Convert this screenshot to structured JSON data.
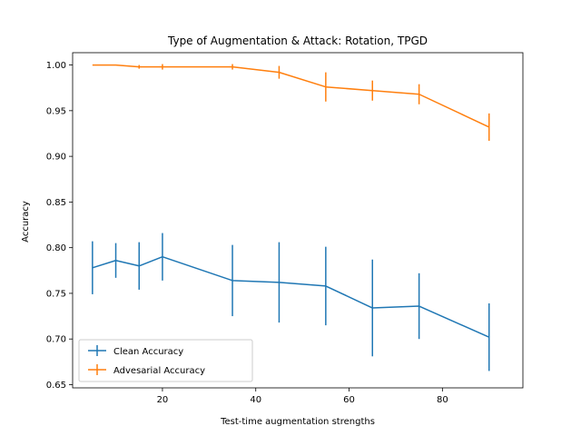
{
  "chart_data": {
    "type": "line",
    "title": "Type of Augmentation & Attack: Rotation, TPGD",
    "xlabel": "Test-time augmentation strengths",
    "ylabel": "Accuracy",
    "xlim": [
      0.75,
      97.25
    ],
    "ylim": [
      0.6465,
      1.0135
    ],
    "xticks": [
      20,
      40,
      60,
      80
    ],
    "yticks": [
      0.65,
      0.7,
      0.75,
      0.8,
      0.85,
      0.9,
      0.95,
      1.0
    ],
    "xtick_labels": [
      "20",
      "40",
      "60",
      "80"
    ],
    "ytick_labels": [
      "0.65",
      "0.70",
      "0.75",
      "0.80",
      "0.85",
      "0.90",
      "0.95",
      "1.00"
    ],
    "grid": false,
    "legend_position": "lower-left",
    "error_bars": true,
    "series": [
      {
        "name": "Clean Accuracy",
        "color": "#1f77b4",
        "x": [
          5,
          10,
          15,
          20,
          35,
          45,
          55,
          65,
          75,
          90
        ],
        "values": [
          0.778,
          0.786,
          0.78,
          0.79,
          0.764,
          0.762,
          0.758,
          0.734,
          0.736,
          0.702
        ],
        "errors": [
          0.029,
          0.019,
          0.026,
          0.026,
          0.039,
          0.044,
          0.043,
          0.053,
          0.036,
          0.037
        ]
      },
      {
        "name": "Advesarial Accuracy",
        "color": "#ff7f0e",
        "x": [
          5,
          10,
          15,
          20,
          35,
          45,
          55,
          65,
          75,
          90
        ],
        "values": [
          1.0,
          1.0,
          0.998,
          0.998,
          0.998,
          0.992,
          0.976,
          0.972,
          0.968,
          0.932
        ],
        "errors": [
          0.0,
          0.0,
          0.002,
          0.003,
          0.003,
          0.007,
          0.016,
          0.011,
          0.011,
          0.015
        ]
      }
    ]
  }
}
